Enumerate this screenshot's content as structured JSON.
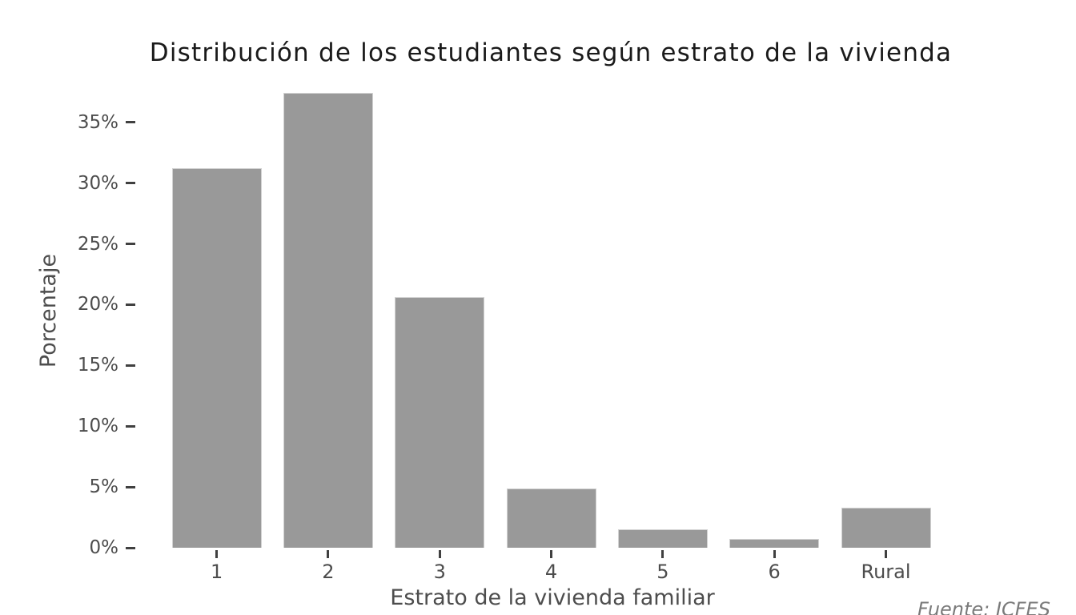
{
  "figure": {
    "title": "Distribución de los estudiantes según estrato de la vivienda",
    "source_note": "Fuente: ICFES"
  },
  "chart_data": {
    "type": "bar",
    "title": "Distribución de los estudiantes según estrato de la vivienda",
    "categories": [
      "1",
      "2",
      "3",
      "4",
      "5",
      "6",
      "Rural"
    ],
    "values": [
      31.2,
      37.4,
      20.6,
      4.9,
      1.5,
      0.7,
      3.3
    ],
    "xlabel": "Estrato de la vivienda familiar",
    "ylabel": "Porcentaje",
    "yticks": {
      "values": [
        0,
        5,
        10,
        15,
        20,
        25,
        30,
        35
      ],
      "labels": [
        "0%",
        "5%",
        "10%",
        "15%",
        "20%",
        "25%",
        "30%",
        "35%"
      ]
    },
    "ylim": [
      0,
      37.5
    ],
    "grid": false,
    "legend": false,
    "source_note": "Fuente: ICFES",
    "colors": {
      "bar_fill": "#999999",
      "bar_border": "#d2d2d2",
      "axis_text": "#4d4d4d",
      "tick_mark": "#404040",
      "title_text": "#1a1a1a",
      "source_text": "#7a7a7a",
      "background": "#ffffff"
    }
  }
}
